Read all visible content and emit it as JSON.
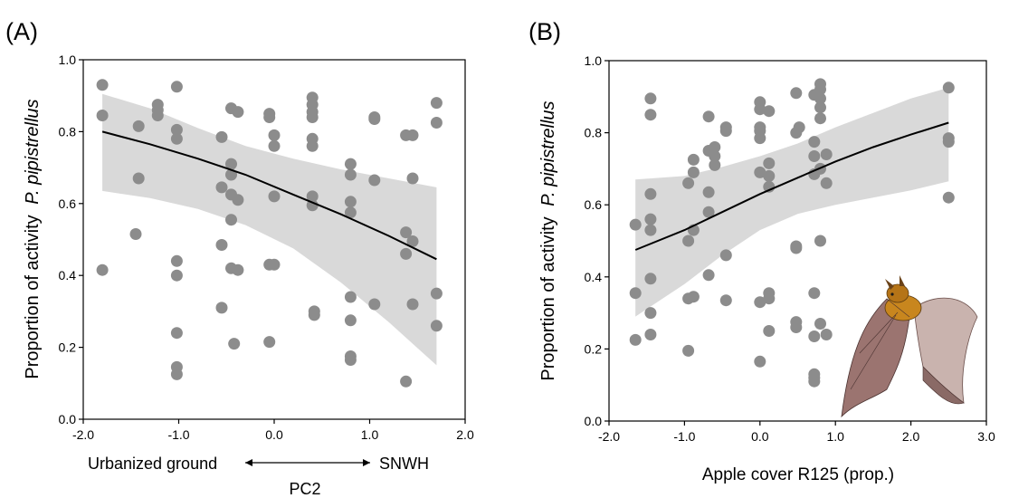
{
  "colors": {
    "points": "#8c8c8c",
    "band": "#d9d9d9",
    "line": "#000000",
    "axis": "#000000"
  },
  "chart_data": [
    {
      "panel_label": "(A)",
      "type": "scatter",
      "xlabel": "PC2",
      "ylabel_plain": "Proportion of activity",
      "ylabel_italic": "P. pipistrellus",
      "x_annotation_left": "Urbanized ground",
      "x_annotation_right": "SNWH",
      "xlim": [
        -2.0,
        2.0
      ],
      "ylim": [
        0.0,
        1.0
      ],
      "xticks": [
        -2.0,
        -1.0,
        0.0,
        1.0,
        2.0
      ],
      "xtick_labels": [
        "-2.0",
        "-1.0",
        "0.0",
        "1.0",
        "2.0"
      ],
      "yticks": [
        0.0,
        0.2,
        0.4,
        0.6,
        0.8,
        1.0
      ],
      "ytick_labels": [
        "0.0",
        "0.2",
        "0.4",
        "0.6",
        "0.8",
        "1.0"
      ],
      "grid": false,
      "fit": {
        "x": [
          -1.8,
          -1.3,
          -0.8,
          -0.3,
          0.2,
          0.7,
          1.2,
          1.7
        ],
        "y": [
          0.8,
          0.765,
          0.725,
          0.68,
          0.625,
          0.57,
          0.51,
          0.445
        ],
        "lower": [
          0.635,
          0.615,
          0.585,
          0.54,
          0.475,
          0.38,
          0.27,
          0.15
        ],
        "upper": [
          0.905,
          0.865,
          0.81,
          0.76,
          0.725,
          0.695,
          0.67,
          0.645
        ]
      },
      "points": [
        {
          "x": -1.8,
          "y": 0.93
        },
        {
          "x": -1.8,
          "y": 0.845
        },
        {
          "x": -1.8,
          "y": 0.415
        },
        {
          "x": -1.42,
          "y": 0.815
        },
        {
          "x": -1.42,
          "y": 0.67
        },
        {
          "x": -1.45,
          "y": 0.515
        },
        {
          "x": -1.22,
          "y": 0.875
        },
        {
          "x": -1.22,
          "y": 0.86
        },
        {
          "x": -1.22,
          "y": 0.845
        },
        {
          "x": -1.02,
          "y": 0.925
        },
        {
          "x": -1.02,
          "y": 0.805
        },
        {
          "x": -1.02,
          "y": 0.78
        },
        {
          "x": -1.02,
          "y": 0.44
        },
        {
          "x": -1.02,
          "y": 0.4
        },
        {
          "x": -1.02,
          "y": 0.24
        },
        {
          "x": -1.02,
          "y": 0.145
        },
        {
          "x": -1.02,
          "y": 0.125
        },
        {
          "x": -0.55,
          "y": 0.785
        },
        {
          "x": -0.55,
          "y": 0.645
        },
        {
          "x": -0.55,
          "y": 0.485
        },
        {
          "x": -0.55,
          "y": 0.31
        },
        {
          "x": -0.45,
          "y": 0.865
        },
        {
          "x": -0.45,
          "y": 0.71
        },
        {
          "x": -0.45,
          "y": 0.68
        },
        {
          "x": -0.45,
          "y": 0.625
        },
        {
          "x": -0.45,
          "y": 0.555
        },
        {
          "x": -0.45,
          "y": 0.42
        },
        {
          "x": -0.42,
          "y": 0.21
        },
        {
          "x": -0.38,
          "y": 0.855
        },
        {
          "x": -0.38,
          "y": 0.61
        },
        {
          "x": -0.38,
          "y": 0.415
        },
        {
          "x": -0.05,
          "y": 0.85
        },
        {
          "x": -0.05,
          "y": 0.84
        },
        {
          "x": -0.05,
          "y": 0.43
        },
        {
          "x": -0.05,
          "y": 0.215
        },
        {
          "x": 0.0,
          "y": 0.79
        },
        {
          "x": 0.0,
          "y": 0.76
        },
        {
          "x": 0.0,
          "y": 0.62
        },
        {
          "x": 0.0,
          "y": 0.43
        },
        {
          "x": 0.4,
          "y": 0.895
        },
        {
          "x": 0.4,
          "y": 0.875
        },
        {
          "x": 0.4,
          "y": 0.855
        },
        {
          "x": 0.4,
          "y": 0.84
        },
        {
          "x": 0.4,
          "y": 0.78
        },
        {
          "x": 0.4,
          "y": 0.76
        },
        {
          "x": 0.4,
          "y": 0.62
        },
        {
          "x": 0.4,
          "y": 0.595
        },
        {
          "x": 0.42,
          "y": 0.3
        },
        {
          "x": 0.42,
          "y": 0.29
        },
        {
          "x": 0.8,
          "y": 0.71
        },
        {
          "x": 0.8,
          "y": 0.68
        },
        {
          "x": 0.8,
          "y": 0.605
        },
        {
          "x": 0.8,
          "y": 0.575
        },
        {
          "x": 0.8,
          "y": 0.34
        },
        {
          "x": 0.8,
          "y": 0.275
        },
        {
          "x": 0.8,
          "y": 0.175
        },
        {
          "x": 0.8,
          "y": 0.165
        },
        {
          "x": 1.05,
          "y": 0.84
        },
        {
          "x": 1.05,
          "y": 0.835
        },
        {
          "x": 1.05,
          "y": 0.665
        },
        {
          "x": 1.05,
          "y": 0.32
        },
        {
          "x": 1.38,
          "y": 0.79
        },
        {
          "x": 1.38,
          "y": 0.52
        },
        {
          "x": 1.38,
          "y": 0.46
        },
        {
          "x": 1.38,
          "y": 0.105
        },
        {
          "x": 1.45,
          "y": 0.79
        },
        {
          "x": 1.45,
          "y": 0.67
        },
        {
          "x": 1.45,
          "y": 0.495
        },
        {
          "x": 1.45,
          "y": 0.32
        },
        {
          "x": 1.7,
          "y": 0.88
        },
        {
          "x": 1.7,
          "y": 0.825
        },
        {
          "x": 1.7,
          "y": 0.35
        },
        {
          "x": 1.7,
          "y": 0.26
        }
      ]
    },
    {
      "panel_label": "(B)",
      "type": "scatter",
      "xlabel": "Apple cover R125 (prop.)",
      "ylabel_plain": "Proportion of activity",
      "ylabel_italic": "P. pipistrellus",
      "xlim": [
        -2.0,
        3.0
      ],
      "ylim": [
        0.0,
        1.0
      ],
      "xticks": [
        -2.0,
        -1.0,
        0.0,
        1.0,
        2.0,
        3.0
      ],
      "xtick_labels": [
        "-2.0",
        "-1.0",
        "0.0",
        "1.0",
        "2.0",
        "3.0"
      ],
      "yticks": [
        0.0,
        0.2,
        0.4,
        0.6,
        0.8,
        1.0
      ],
      "ytick_labels": [
        "0.0",
        "0.2",
        "0.4",
        "0.6",
        "0.8",
        "1.0"
      ],
      "grid": false,
      "fit": {
        "x": [
          -1.65,
          -1.0,
          -0.5,
          0.0,
          0.5,
          1.0,
          1.5,
          2.0,
          2.5
        ],
        "y": [
          0.475,
          0.53,
          0.58,
          0.63,
          0.675,
          0.72,
          0.76,
          0.795,
          0.828
        ],
        "lower": [
          0.29,
          0.38,
          0.46,
          0.53,
          0.575,
          0.6,
          0.62,
          0.64,
          0.665
        ],
        "upper": [
          0.67,
          0.68,
          0.705,
          0.735,
          0.77,
          0.815,
          0.855,
          0.895,
          0.925
        ]
      },
      "points": [
        {
          "x": -1.65,
          "y": 0.545
        },
        {
          "x": -1.65,
          "y": 0.355
        },
        {
          "x": -1.65,
          "y": 0.225
        },
        {
          "x": -1.45,
          "y": 0.895
        },
        {
          "x": -1.45,
          "y": 0.85
        },
        {
          "x": -1.45,
          "y": 0.63
        },
        {
          "x": -1.45,
          "y": 0.56
        },
        {
          "x": -1.45,
          "y": 0.53
        },
        {
          "x": -1.45,
          "y": 0.395
        },
        {
          "x": -1.45,
          "y": 0.3
        },
        {
          "x": -1.45,
          "y": 0.24
        },
        {
          "x": -0.95,
          "y": 0.66
        },
        {
          "x": -0.95,
          "y": 0.5
        },
        {
          "x": -0.95,
          "y": 0.34
        },
        {
          "x": -0.95,
          "y": 0.195
        },
        {
          "x": -0.88,
          "y": 0.725
        },
        {
          "x": -0.88,
          "y": 0.69
        },
        {
          "x": -0.88,
          "y": 0.53
        },
        {
          "x": -0.88,
          "y": 0.345
        },
        {
          "x": -0.68,
          "y": 0.845
        },
        {
          "x": -0.68,
          "y": 0.75
        },
        {
          "x": -0.68,
          "y": 0.635
        },
        {
          "x": -0.68,
          "y": 0.58
        },
        {
          "x": -0.68,
          "y": 0.405
        },
        {
          "x": -0.6,
          "y": 0.76
        },
        {
          "x": -0.6,
          "y": 0.735
        },
        {
          "x": -0.6,
          "y": 0.71
        },
        {
          "x": -0.45,
          "y": 0.815
        },
        {
          "x": -0.45,
          "y": 0.805
        },
        {
          "x": -0.45,
          "y": 0.46
        },
        {
          "x": -0.45,
          "y": 0.335
        },
        {
          "x": 0.0,
          "y": 0.885
        },
        {
          "x": 0.0,
          "y": 0.865
        },
        {
          "x": 0.0,
          "y": 0.815
        },
        {
          "x": 0.0,
          "y": 0.805
        },
        {
          "x": 0.0,
          "y": 0.785
        },
        {
          "x": 0.0,
          "y": 0.69
        },
        {
          "x": 0.0,
          "y": 0.33
        },
        {
          "x": 0.0,
          "y": 0.165
        },
        {
          "x": 0.12,
          "y": 0.86
        },
        {
          "x": 0.12,
          "y": 0.715
        },
        {
          "x": 0.12,
          "y": 0.68
        },
        {
          "x": 0.12,
          "y": 0.65
        },
        {
          "x": 0.12,
          "y": 0.355
        },
        {
          "x": 0.12,
          "y": 0.34
        },
        {
          "x": 0.12,
          "y": 0.25
        },
        {
          "x": 0.48,
          "y": 0.91
        },
        {
          "x": 0.48,
          "y": 0.8
        },
        {
          "x": 0.48,
          "y": 0.485
        },
        {
          "x": 0.48,
          "y": 0.48
        },
        {
          "x": 0.48,
          "y": 0.275
        },
        {
          "x": 0.48,
          "y": 0.26
        },
        {
          "x": 0.52,
          "y": 0.815
        },
        {
          "x": 0.72,
          "y": 0.905
        },
        {
          "x": 0.72,
          "y": 0.775
        },
        {
          "x": 0.72,
          "y": 0.735
        },
        {
          "x": 0.72,
          "y": 0.685
        },
        {
          "x": 0.72,
          "y": 0.355
        },
        {
          "x": 0.72,
          "y": 0.235
        },
        {
          "x": 0.72,
          "y": 0.13
        },
        {
          "x": 0.72,
          "y": 0.12
        },
        {
          "x": 0.72,
          "y": 0.11
        },
        {
          "x": 0.8,
          "y": 0.935
        },
        {
          "x": 0.8,
          "y": 0.92
        },
        {
          "x": 0.8,
          "y": 0.895
        },
        {
          "x": 0.8,
          "y": 0.87
        },
        {
          "x": 0.8,
          "y": 0.84
        },
        {
          "x": 0.8,
          "y": 0.7
        },
        {
          "x": 0.8,
          "y": 0.5
        },
        {
          "x": 0.8,
          "y": 0.27
        },
        {
          "x": 0.88,
          "y": 0.74
        },
        {
          "x": 0.88,
          "y": 0.66
        },
        {
          "x": 0.88,
          "y": 0.24
        },
        {
          "x": 2.5,
          "y": 0.925
        },
        {
          "x": 2.5,
          "y": 0.785
        },
        {
          "x": 2.5,
          "y": 0.775
        },
        {
          "x": 2.5,
          "y": 0.62
        }
      ]
    }
  ]
}
